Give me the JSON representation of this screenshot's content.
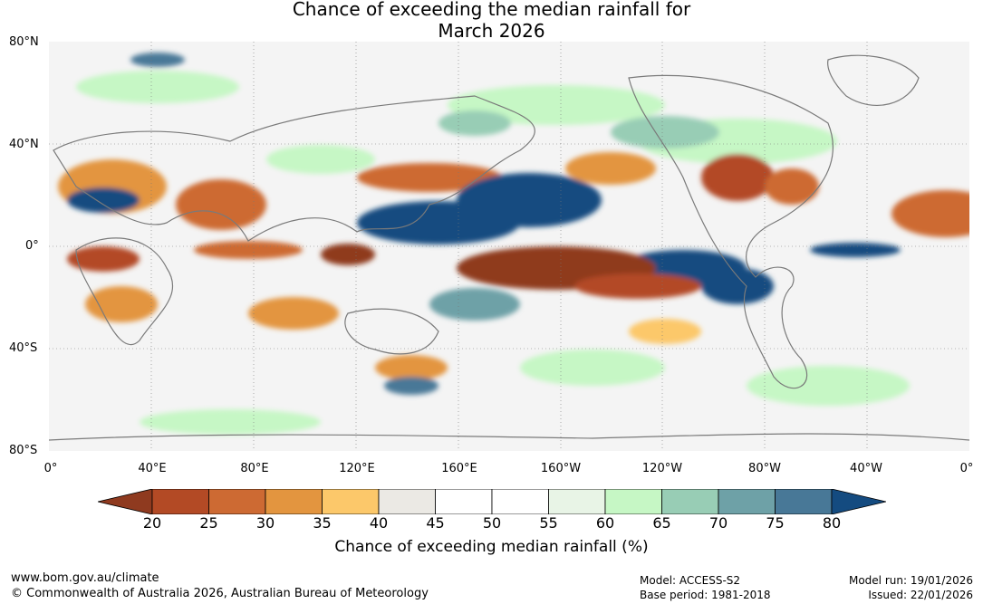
{
  "title": {
    "line1": "Chance of exceeding the median rainfall for",
    "line2": "March 2026"
  },
  "map": {
    "lat_labels": [
      "80°N",
      "40°N",
      "0°",
      "40°S",
      "80°S"
    ],
    "lon_labels": [
      "0°",
      "40°E",
      "80°E",
      "120°E",
      "160°E",
      "160°W",
      "120°W",
      "80°W",
      "40°W",
      "0°"
    ],
    "land_color": "#7a7a7a"
  },
  "colorbar": {
    "ticks": [
      "20",
      "25",
      "30",
      "35",
      "40",
      "45",
      "50",
      "55",
      "60",
      "65",
      "70",
      "75",
      "80"
    ],
    "colors": [
      "#8f3a1f",
      "#b34a25",
      "#cd6a33",
      "#e3953f",
      "#fcc86a",
      "#ebe9e4",
      "#ffffff",
      "#ffffff",
      "#e8f4e6",
      "#c6f7c5",
      "#98cdb5",
      "#6ea1a7",
      "#487897",
      "#144b80"
    ],
    "label": "Chance of exceeding median rainfall (%)"
  },
  "footer": {
    "website": "www.bom.gov.au/climate",
    "copyright": "© Commonwealth of Australia 2026, Australian Bureau of Meteorology",
    "model": "Model: ACCESS-S2",
    "base_period": "Base period: 1981-2018",
    "model_run": "Model run: 19/01/2026",
    "issued": "Issued: 22/01/2026"
  }
}
